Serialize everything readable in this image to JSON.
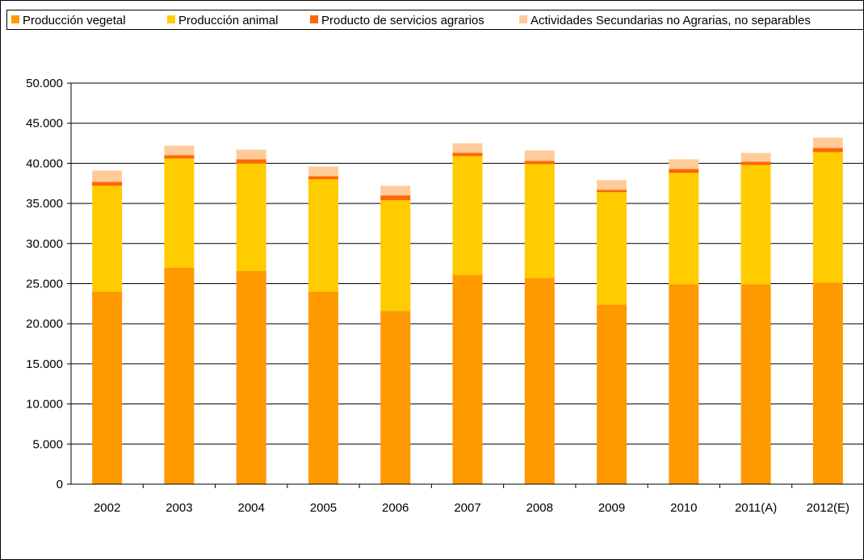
{
  "chart_data": {
    "type": "bar",
    "stacked": true,
    "categories": [
      "2002",
      "2003",
      "2004",
      "2005",
      "2006",
      "2007",
      "2008",
      "2009",
      "2010",
      "2011(A)",
      "2012(E)"
    ],
    "series": [
      {
        "name": "Producción vegetal",
        "color": "#ff9900",
        "values": [
          24000,
          27000,
          26600,
          24000,
          21600,
          26100,
          25700,
          22400,
          24900,
          24900,
          25100
        ]
      },
      {
        "name": "Producción animal",
        "color": "#ffcc00",
        "values": [
          13200,
          13600,
          13400,
          14000,
          13800,
          14800,
          14200,
          14000,
          13900,
          14900,
          16300
        ]
      },
      {
        "name": "Producto de servicios agrarios",
        "color": "#ff6600",
        "values": [
          500,
          400,
          500,
          400,
          600,
          400,
          400,
          300,
          500,
          400,
          500
        ]
      },
      {
        "name": "Actividades Secundarias no Agrarias, no separables",
        "color": "#ffcc99",
        "values": [
          1400,
          1200,
          1200,
          1200,
          1200,
          1200,
          1300,
          1200,
          1200,
          1100,
          1300
        ]
      }
    ],
    "ylim": [
      0,
      50000
    ],
    "yticks": [
      "0",
      "5.000",
      "10.000",
      "15.000",
      "20.000",
      "25.000",
      "30.000",
      "35.000",
      "40.000",
      "45.000",
      "50.000"
    ],
    "ytick_step": 5000,
    "grid": true,
    "legend_position": "top"
  }
}
